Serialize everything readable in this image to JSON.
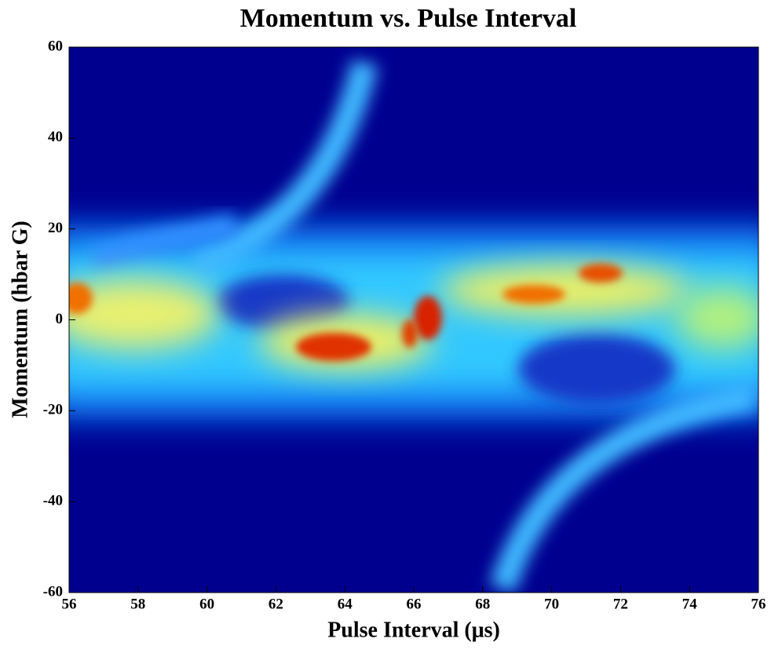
{
  "chart_data": {
    "type": "heatmap",
    "title": "Momentum vs. Pulse Interval",
    "xlabel": "Pulse Interval (μs)",
    "ylabel": "Momentum (hbar G)",
    "xlim": [
      56,
      76
    ],
    "ylim": [
      -60,
      60
    ],
    "xticks": [
      56,
      58,
      60,
      62,
      64,
      66,
      68,
      70,
      72,
      74,
      76
    ],
    "yticks": [
      -60,
      -40,
      -20,
      0,
      20,
      40,
      60
    ]
  }
}
